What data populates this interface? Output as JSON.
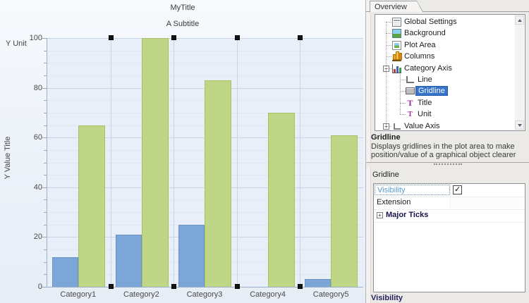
{
  "chart_data": {
    "type": "bar",
    "title": "MyTitle",
    "subtitle": "A Subtitle",
    "y_unit_label": "Y Unit",
    "ylabel": "Y Value Title",
    "xlabel": "",
    "categories": [
      "Category1",
      "Category2",
      "Category3",
      "Category4",
      "Category5"
    ],
    "series": [
      {
        "color": "#7da6d8",
        "border_color": "#6b94c4",
        "values": [
          12,
          21,
          25,
          0,
          3
        ]
      },
      {
        "color": "#bfd687",
        "border_color": "#a8c163",
        "values": [
          65,
          100,
          83,
          70,
          61
        ]
      }
    ],
    "ylim": [
      0,
      100
    ],
    "yticks": [
      0,
      20,
      40,
      60,
      80,
      100
    ],
    "minor_tick_step": 5,
    "grid": "on",
    "legend": "none"
  },
  "designer": {
    "gridline_selection_handles": true
  },
  "panel": {
    "tab": "Overview",
    "tree": [
      {
        "label": "Global Settings",
        "icon": "global-settings-icon",
        "cls": "i-global",
        "level": 0
      },
      {
        "label": "Background",
        "icon": "background-icon",
        "cls": "i-bg",
        "level": 0
      },
      {
        "label": "Plot Area",
        "icon": "plot-area-icon",
        "cls": "i-plot",
        "level": 0
      },
      {
        "label": "Columns",
        "icon": "columns-icon",
        "cls": "i-cols",
        "level": 0
      },
      {
        "label": "Category Axis",
        "icon": "category-axis-icon",
        "cls": "i-cat",
        "level": 0,
        "expander": "-"
      },
      {
        "label": "Line",
        "icon": "line-icon",
        "cls": "i-line",
        "level": 1
      },
      {
        "label": "Gridline",
        "icon": "gridline-icon",
        "cls": "i-grid",
        "level": 1,
        "selected": true
      },
      {
        "label": "Title",
        "icon": "title-icon",
        "cls": "i-title",
        "level": 1,
        "glyph": "T"
      },
      {
        "label": "Unit",
        "icon": "unit-icon",
        "cls": "i-unit",
        "level": 1,
        "glyph": "T"
      },
      {
        "label": "Value Axis",
        "icon": "value-axis-icon",
        "cls": "i-vaxis",
        "level": 0,
        "expander": "+"
      }
    ],
    "description_title": "Gridline",
    "description_text": "Displays gridlines in the plot area to make position/value of a graphical object clearer",
    "section_header": "Gridline",
    "properties": [
      {
        "name": "Visibility",
        "type": "checkbox",
        "checked": true
      },
      {
        "name": "Extension",
        "type": "text",
        "value": ""
      },
      {
        "name": "Major Ticks",
        "type": "group",
        "expander": "+"
      }
    ],
    "property_help_title": "Visibility",
    "colors": {
      "tree_selection": "#3674cb",
      "focused_property_text": "#5b9bd5",
      "help_title_text": "#232360"
    }
  }
}
